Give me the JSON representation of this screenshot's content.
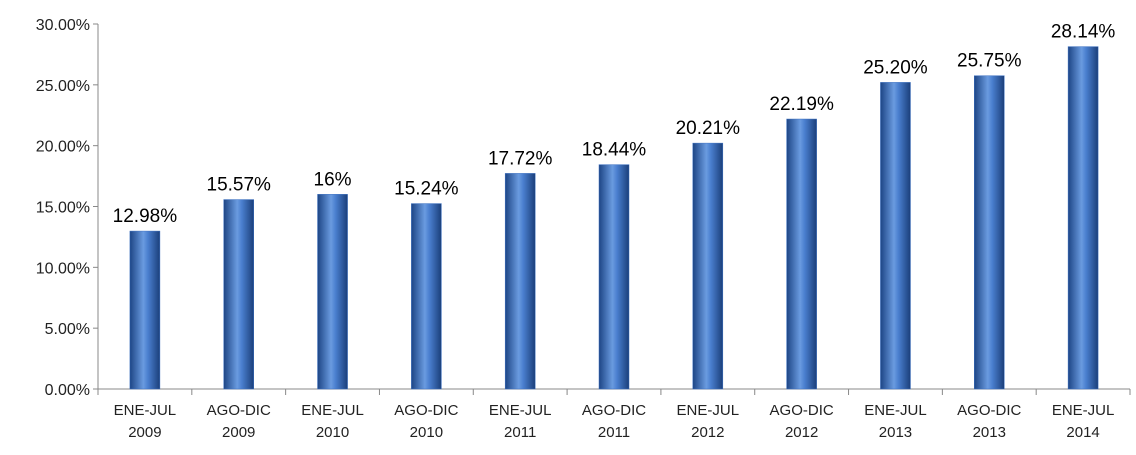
{
  "chart_data": {
    "type": "bar",
    "categories": [
      [
        "ENE-JUL",
        "2009"
      ],
      [
        "AGO-DIC",
        "2009"
      ],
      [
        "ENE-JUL",
        "2010"
      ],
      [
        "AGO-DIC",
        "2010"
      ],
      [
        "ENE-JUL",
        "2011"
      ],
      [
        "AGO-DIC",
        "2011"
      ],
      [
        "ENE-JUL",
        "2012"
      ],
      [
        "AGO-DIC",
        "2012"
      ],
      [
        "ENE-JUL",
        "2013"
      ],
      [
        "AGO-DIC",
        "2013"
      ],
      [
        "ENE-JUL",
        "2014"
      ]
    ],
    "values": [
      12.98,
      15.57,
      16,
      15.24,
      17.72,
      18.44,
      20.21,
      22.19,
      25.2,
      25.75,
      28.14
    ],
    "value_labels": [
      "12.98%",
      "15.57%",
      "16%",
      "15.24%",
      "17.72%",
      "18.44%",
      "20.21%",
      "22.19%",
      "25.20%",
      "25.75%",
      "28.14%"
    ],
    "color": "#3a6fc0",
    "ylim": [
      0,
      30
    ],
    "yticks": [
      {
        "value": 0,
        "label": "0.00%"
      },
      {
        "value": 5,
        "label": "5.00%"
      },
      {
        "value": 10,
        "label": "10.00%"
      },
      {
        "value": 15,
        "label": "15.00%"
      },
      {
        "value": 20,
        "label": "20.00%"
      },
      {
        "value": 25,
        "label": "25.00%"
      },
      {
        "value": 30,
        "label": "30.00%"
      }
    ],
    "grid": false
  }
}
